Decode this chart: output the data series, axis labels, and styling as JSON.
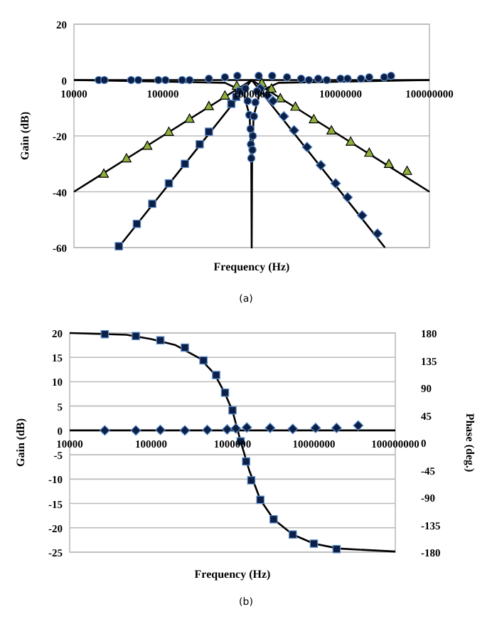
{
  "chart_data": [
    {
      "type": "line",
      "xlabel": "Frequency (Hz)",
      "ylabel": "Gain (dB)",
      "log": "x",
      "grid": "y",
      "xlim": [
        10000,
        100000000
      ],
      "xticks": [
        10000,
        100000,
        1000000,
        10000000,
        100000000
      ],
      "ylim": [
        -60,
        20
      ],
      "yticks": [
        -60,
        -40,
        -20,
        0,
        20
      ],
      "annotations": [
        "(a)"
      ],
      "series": [
        {
          "type": "line",
          "color": "#000000",
          "marker": "none",
          "x": [
            10000,
            100000000
          ],
          "values": [
            0,
            0
          ]
        },
        {
          "type": "line",
          "color": "#000000",
          "marker": "none",
          "x": [
            10000,
            100000,
            1000000,
            10000000,
            100000000
          ],
          "values": [
            -40,
            -20,
            0,
            -20,
            -40
          ]
        },
        {
          "type": "line",
          "color": "#000000",
          "marker": "none",
          "x": [
            31600,
            100000,
            1000000,
            10000000,
            31600000
          ],
          "values": [
            -60,
            -40,
            0,
            -40,
            -60
          ]
        },
        {
          "type": "line",
          "color": "#000000",
          "marker": "none",
          "x": [
            10000,
            500000,
            800000,
            950000,
            990000,
            1000000,
            1010000,
            1050000,
            1250000,
            2000000,
            100000000
          ],
          "values": [
            0,
            -1,
            -4,
            -13,
            -30,
            -60,
            -30,
            -13,
            -4,
            -1,
            0
          ]
        },
        {
          "type": "scatter",
          "color": "#0d1f45",
          "marker": "circle",
          "x": [
            19000,
            22000,
            44000,
            53000,
            89000,
            107000,
            165000,
            200000,
            330000,
            500000,
            690000,
            1200000,
            1700000,
            2500000,
            3600000,
            4400000,
            5600000,
            7000000,
            10000000,
            12000000,
            17000000,
            21000000,
            31000000,
            37000000
          ],
          "values": [
            0,
            0,
            0,
            0,
            0,
            0,
            0,
            0,
            0.5,
            1,
            1.5,
            1.5,
            1.5,
            1,
            0.5,
            0,
            0.5,
            0,
            0.5,
            0.5,
            0.5,
            1,
            1,
            1.5
          ]
        },
        {
          "type": "scatter",
          "color": "#8fb03c",
          "marker": "triangle",
          "x": [
            21700,
            39000,
            67000,
            117000,
            200000,
            330000,
            500000,
            680000,
            1300000,
            1670000,
            2100000,
            3100000,
            5000000,
            7900000,
            13000000,
            21000000,
            35000000,
            56000000
          ],
          "values": [
            -33.5,
            -28,
            -23.5,
            -18.5,
            -13.8,
            -9.3,
            -5.5,
            -2,
            -1,
            -3,
            -6.5,
            -9.5,
            -14,
            -18,
            -22,
            -26,
            -30,
            -32.5
          ]
        },
        {
          "type": "scatter",
          "color": "#0d1f45",
          "marker": "square",
          "x": [
            32000,
            51000,
            76000,
            117000,
            177000,
            260000,
            330000,
            590000,
            670000,
            740000
          ],
          "values": [
            -59.5,
            -51.5,
            -44.3,
            -37,
            -30,
            -23,
            -18.5,
            -8.5,
            -6,
            -4
          ]
        },
        {
          "type": "scatter",
          "color": "#0d1f45",
          "marker": "diamond",
          "x": [
            1250000,
            1500000,
            1740000,
            2300000,
            3000000,
            4200000,
            6000000,
            8800000,
            12000000,
            17500000,
            26000000
          ],
          "values": [
            -3,
            -5.5,
            -7.5,
            -13,
            -18,
            -24,
            -30.5,
            -37,
            -42,
            -48.5,
            -55
          ]
        },
        {
          "type": "scatter",
          "color": "#0d1f45",
          "marker": "circle",
          "x": [
            850000,
            900000,
            940000,
            970000,
            980000,
            990000,
            1020000,
            1030000,
            1060000,
            1100000,
            1150000
          ],
          "values": [
            -3,
            -7.5,
            -12.5,
            -17.5,
            -23,
            -28,
            -25,
            -20,
            -13,
            -8,
            -4
          ]
        }
      ]
    },
    {
      "type": "line",
      "xlabel": "Frequency (Hz)",
      "ylabel": "Gain (dB)",
      "y2label": "Phase (deg.)",
      "log": "x",
      "grid": "y",
      "xlim": [
        10000,
        100000000
      ],
      "xticks": [
        10000,
        100000,
        1000000,
        10000000,
        100000000
      ],
      "ylim": [
        -25,
        20
      ],
      "yticks": [
        -25,
        -20,
        -15,
        -10,
        -5,
        0,
        5,
        10,
        15,
        20
      ],
      "y2lim": [
        -180,
        180
      ],
      "y2ticks": [
        -180,
        -135,
        -90,
        -45,
        0,
        45,
        90,
        135,
        180
      ],
      "annotations": [
        "(b)"
      ],
      "series": [
        {
          "type": "line",
          "color": "#000000",
          "marker": "none",
          "x": [
            10000,
            100000000
          ],
          "values": [
            0,
            0
          ]
        },
        {
          "type": "line",
          "axis": "y2",
          "color": "#000000",
          "marker": "none",
          "x": [
            10000,
            50000,
            100000,
            200000,
            400000,
            600000,
            800000,
            1000000,
            1260000,
            1600000,
            2200000,
            3200000,
            5500000,
            10000000,
            20000000,
            100000000
          ],
          "values": [
            180,
            177,
            170,
            160,
            138,
            113,
            82,
            52,
            2,
            -45,
            -94,
            -126,
            -151,
            -166,
            -174,
            -179
          ]
        },
        {
          "type": "scatter",
          "axis": "y2",
          "color": "#0d1f45",
          "marker": "square",
          "x": [
            27000,
            65000,
            130000,
            260000,
            440000,
            630000,
            810000,
            1000000,
            1260000,
            1470000,
            1700000,
            2200000,
            3200000,
            5500000,
            10000000,
            19000000
          ],
          "values": [
            178,
            175,
            168,
            156,
            135,
            111,
            82,
            53,
            2,
            -31,
            -62,
            -94,
            -126,
            -151,
            -166,
            -175
          ]
        },
        {
          "type": "scatter",
          "color": "#0d1f45",
          "marker": "diamond",
          "x": [
            27000,
            65000,
            130000,
            260000,
            490000,
            860000,
            1100000,
            1500000,
            2900000,
            5500000,
            10500000,
            19000000,
            35000000
          ],
          "values": [
            0,
            0,
            0.1,
            0,
            0.1,
            0.2,
            0.4,
            0.6,
            0.5,
            0.3,
            0.5,
            0.5,
            1
          ]
        }
      ]
    }
  ]
}
